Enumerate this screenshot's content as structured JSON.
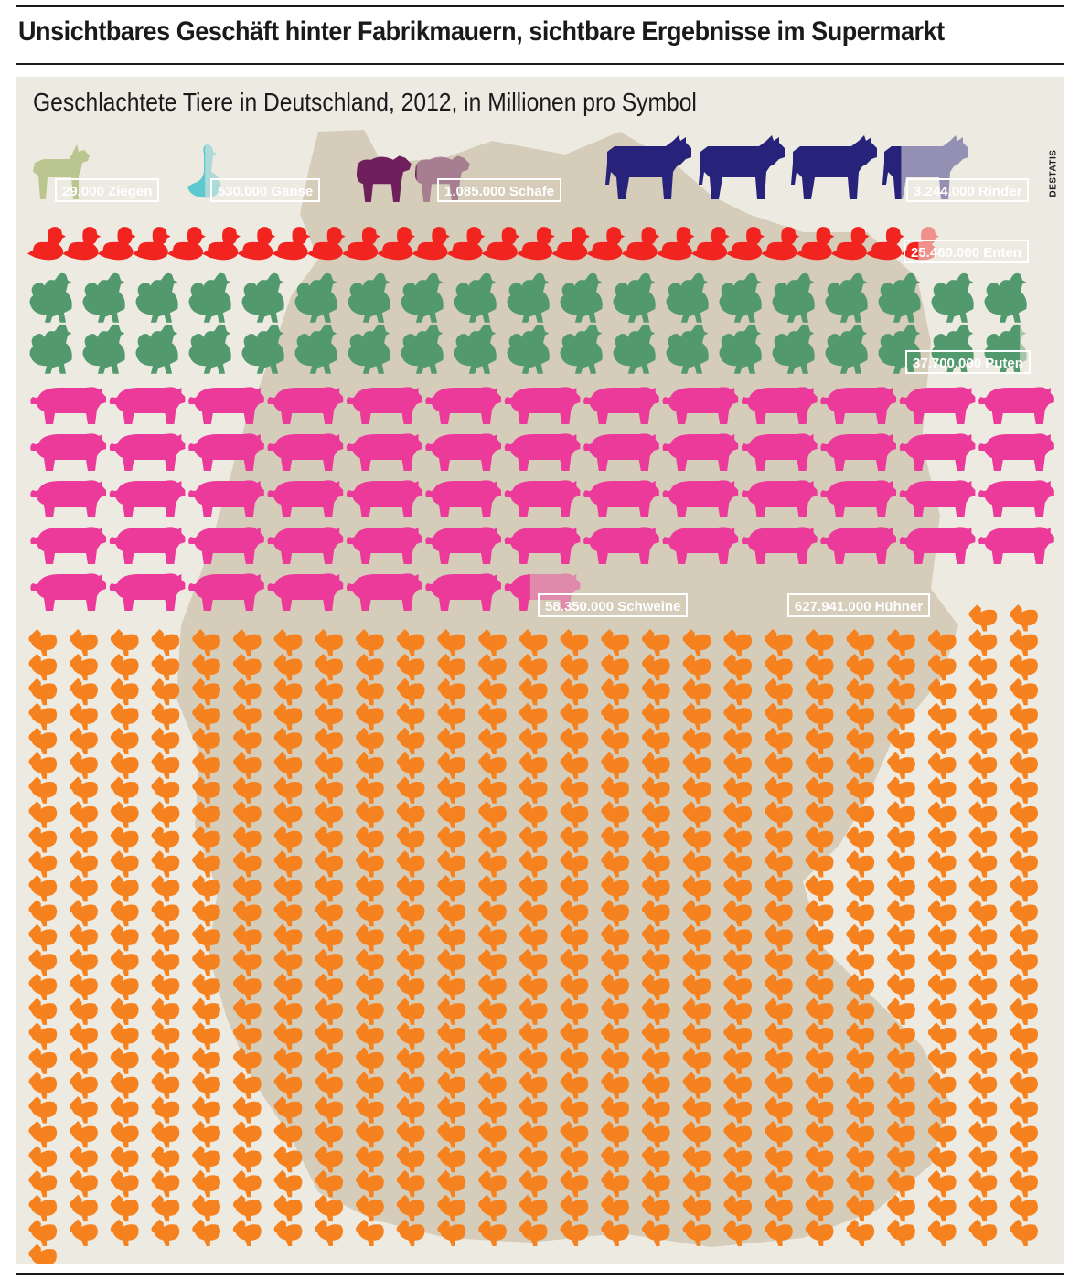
{
  "page": {
    "headline": "Unsichtbares Geschäft hinter Fabrikmauern, sichtbare Ergebnisse im Supermarkt"
  },
  "chart_data": {
    "type": "pictogram",
    "title": "Geschlachtete Tiere in Deutschland, 2012, in Millionen pro Symbol",
    "source": "DESTATIS",
    "unit_per_symbol": 1000000,
    "series": [
      {
        "key": "ziegen",
        "name": "Ziegen",
        "label": "29.000 Ziegen",
        "value": 29000,
        "symbols": 0.029,
        "color": "#7f9a2a"
      },
      {
        "key": "gaense",
        "name": "Gänse",
        "label": "530.000 Gänse",
        "value": 530000,
        "symbols": 0.53,
        "color": "#5ec8cf"
      },
      {
        "key": "schafe",
        "name": "Schafe",
        "label": "1.085.000 Schafe",
        "value": 1085000,
        "symbols": 1.085,
        "color": "#6e1f5c"
      },
      {
        "key": "rinder",
        "name": "Rinder",
        "label": "3.244.000 Rinder",
        "value": 3244000,
        "symbols": 3.244,
        "color": "#27237a"
      },
      {
        "key": "enten",
        "name": "Enten",
        "label": "25.460.000 Enten",
        "value": 25460000,
        "symbols": 25.46,
        "color": "#f1241f"
      },
      {
        "key": "puten",
        "name": "Puten",
        "label": "37.700.000 Puten",
        "value": 37700000,
        "symbols": 37.7,
        "color": "#529a6d"
      },
      {
        "key": "schweine",
        "name": "Schweine",
        "label": "58.350.000 Schweine",
        "value": 58350000,
        "symbols": 58.35,
        "color": "#ec3a9a"
      },
      {
        "key": "huehner",
        "name": "Hühner",
        "label": "627.941.000 Hühner",
        "value": 627941000,
        "symbols": 627.941,
        "color": "#f5821f"
      }
    ]
  }
}
